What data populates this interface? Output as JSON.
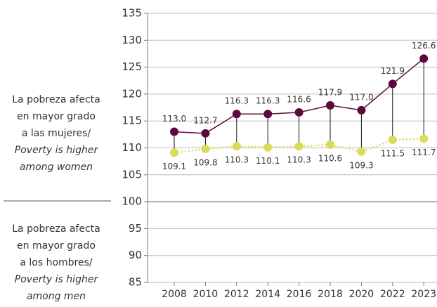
{
  "chart_data": {
    "type": "line",
    "categories": [
      "2008",
      "2010",
      "2012",
      "2014",
      "2016",
      "2018",
      "2020",
      "2022",
      "2023"
    ],
    "series": [
      {
        "color": "#5c0a3e",
        "line_style": "solid",
        "values": [
          113.0,
          112.7,
          116.3,
          116.3,
          116.6,
          117.9,
          117.0,
          121.9,
          126.6
        ],
        "value_labels": [
          "113.0",
          "112.7",
          "116.3",
          "116.3",
          "116.6",
          "117.9",
          "117.0",
          "121.9",
          "126.6"
        ],
        "label_position": "above"
      },
      {
        "color": "#d9dc5a",
        "line_style": "dotted",
        "values": [
          109.1,
          109.8,
          110.3,
          110.1,
          110.3,
          110.6,
          109.3,
          111.5,
          111.7
        ],
        "value_labels": [
          "109.1",
          "109.8",
          "110.3",
          "110.1",
          "110.3",
          "110.6",
          "109.3",
          "111.5",
          "111.7"
        ],
        "label_position": "below"
      }
    ],
    "ylim": [
      85,
      135
    ],
    "yticks": [
      85,
      90,
      95,
      100,
      105,
      110,
      115,
      120,
      125,
      130,
      135
    ],
    "grid": true,
    "baseline": 100,
    "drop_lines": true,
    "annotations": [
      {
        "text": [
          "La pobreza afecta",
          "en mayor grado",
          "a las mujeres/"
        ],
        "italic_text": [
          "Poverty is higher",
          "among women"
        ]
      },
      {
        "text": [
          "La pobreza afecta",
          "en mayor grado",
          "a los hombres/"
        ],
        "italic_text": [
          "Poverty is higher",
          "among men"
        ]
      }
    ]
  }
}
